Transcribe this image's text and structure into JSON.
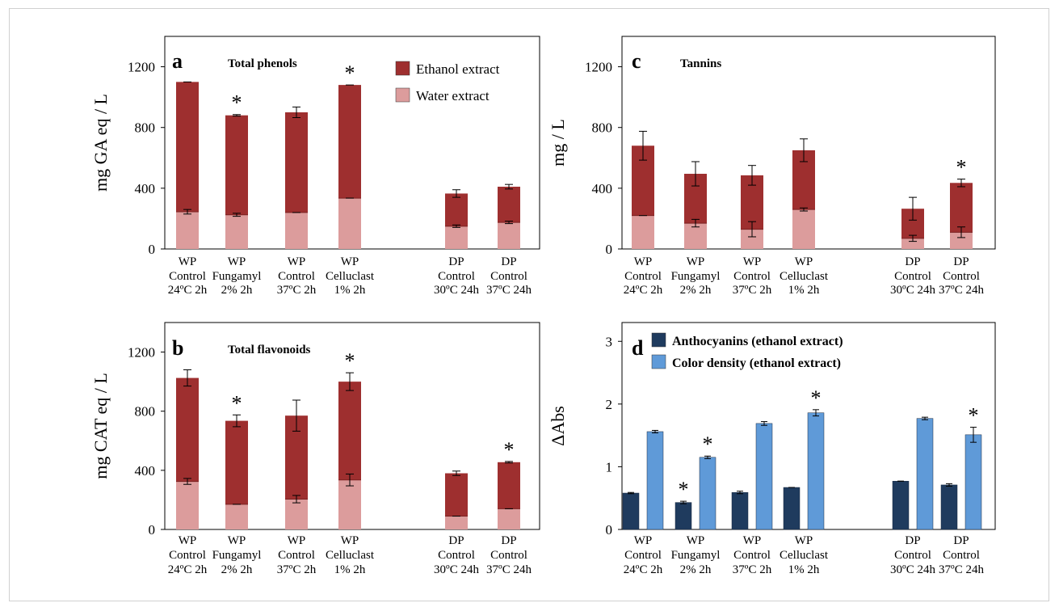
{
  "colors": {
    "ethanol": "#9e2f2f",
    "water": "#dc9c9c",
    "anthocyanins": "#1f3b5e",
    "color_density": "#5f9ad8"
  },
  "chart_data": [
    {
      "id": "a",
      "type": "bar",
      "stacked": true,
      "panel_letter": "a",
      "title": "Total phenols",
      "ylabel": "mg GA eq / L",
      "ylim": [
        0,
        1400
      ],
      "yticks": [
        "0",
        "400",
        "800",
        "1200"
      ],
      "categories": [
        [
          "WP",
          "Control",
          "24ºC  2h"
        ],
        [
          "WP",
          "Fungamyl",
          "2%  2h"
        ],
        [
          "WP",
          "Control",
          "37ºC  2h"
        ],
        [
          "WP",
          "Celluclast",
          "1%  2h"
        ],
        [
          "DP",
          "Control",
          "30ºC 24h"
        ],
        [
          "DP",
          "Control",
          "37ºC 24h"
        ]
      ],
      "legend": [
        "Ethanol extract",
        "Water extract"
      ],
      "series": [
        {
          "name": "Water extract",
          "values": [
            245,
            225,
            240,
            335,
            150,
            175
          ],
          "errors": [
            15,
            10,
            0,
            0,
            8,
            8
          ]
        },
        {
          "name": "Ethanol extract",
          "values": [
            855,
            655,
            660,
            745,
            215,
            235
          ],
          "errors": [
            0,
            5,
            35,
            0,
            25,
            15
          ]
        }
      ],
      "asterisks": [
        "",
        "*",
        "",
        "*",
        "",
        ""
      ]
    },
    {
      "id": "b",
      "type": "bar",
      "stacked": true,
      "panel_letter": "b",
      "title": "Total flavonoids",
      "ylabel": "mg CAT eq / L",
      "ylim": [
        0,
        1400
      ],
      "yticks": [
        "0",
        "400",
        "800",
        "1200"
      ],
      "categories": [
        [
          "WP",
          "Control",
          "24ºC  2h"
        ],
        [
          "WP",
          "Fungamyl",
          "2%  2h"
        ],
        [
          "WP",
          "Control",
          "37ºC  2h"
        ],
        [
          "WP",
          "Celluclast",
          "1%  2h"
        ],
        [
          "DP",
          "Control",
          "30ºC 24h"
        ],
        [
          "DP",
          "Control",
          "37ºC 24h"
        ]
      ],
      "series": [
        {
          "name": "Water extract",
          "values": [
            325,
            170,
            205,
            335,
            90,
            140
          ],
          "errors": [
            20,
            0,
            25,
            40,
            0,
            0
          ]
        },
        {
          "name": "Ethanol extract",
          "values": [
            700,
            565,
            565,
            665,
            290,
            315
          ],
          "errors": [
            55,
            40,
            105,
            60,
            15,
            5
          ]
        }
      ],
      "asterisks": [
        "",
        "*",
        "",
        "*",
        "",
        "*"
      ]
    },
    {
      "id": "c",
      "type": "bar",
      "stacked": true,
      "panel_letter": "c",
      "title": "Tannins",
      "ylabel": "mg / L",
      "ylim": [
        0,
        1400
      ],
      "yticks": [
        "0",
        "400",
        "800",
        "1200"
      ],
      "categories": [
        [
          "WP",
          "Control",
          "24ºC  2h"
        ],
        [
          "WP",
          "Fungamyl",
          "2%  2h"
        ],
        [
          "WP",
          "Control",
          "37ºC  2h"
        ],
        [
          "WP",
          "Celluclast",
          "1%  2h"
        ],
        [
          "DP",
          "Control",
          "30ºC 24h"
        ],
        [
          "DP",
          "Control",
          "37ºC 24h"
        ]
      ],
      "series": [
        {
          "name": "Water extract",
          "values": [
            220,
            170,
            130,
            260,
            70,
            110
          ],
          "errors": [
            0,
            25,
            50,
            10,
            20,
            35
          ]
        },
        {
          "name": "Ethanol extract",
          "values": [
            460,
            325,
            355,
            390,
            195,
            325
          ],
          "errors": [
            95,
            80,
            65,
            75,
            75,
            25
          ]
        }
      ],
      "asterisks": [
        "",
        "",
        "",
        "",
        "",
        "*"
      ]
    },
    {
      "id": "d",
      "type": "bar",
      "stacked": false,
      "panel_letter": "d",
      "title": "",
      "ylabel": "ΔAbs",
      "ylim": [
        0,
        3.3
      ],
      "yticks": [
        "0",
        "1",
        "2",
        "3"
      ],
      "categories": [
        [
          "WP",
          "Control",
          "24ºC  2h"
        ],
        [
          "WP",
          "Fungamyl",
          "2%  2h"
        ],
        [
          "WP",
          "Control",
          "37ºC  2h"
        ],
        [
          "WP",
          "Celluclast",
          "1%  2h"
        ],
        [
          "DP",
          "Control",
          "30ºC 24h"
        ],
        [
          "DP",
          "Control",
          "37ºC 24h"
        ]
      ],
      "legend": [
        "Anthocyanins (ethanol extract)",
        "Color density (ethanol extract)"
      ],
      "series": [
        {
          "name": "Anthocyanins (ethanol extract)",
          "values": [
            0.58,
            0.43,
            0.59,
            0.67,
            0.77,
            0.71
          ],
          "errors": [
            0.01,
            0.02,
            0.02,
            0,
            0,
            0.02
          ],
          "asterisks": [
            "",
            "*",
            "",
            "",
            "",
            ""
          ]
        },
        {
          "name": "Color density (ethanol extract)",
          "values": [
            1.56,
            1.15,
            1.69,
            1.86,
            1.77,
            1.51
          ],
          "errors": [
            0.02,
            0.02,
            0.03,
            0.05,
            0.02,
            0.12
          ],
          "asterisks": [
            "",
            "*",
            "",
            "*",
            "",
            "*"
          ]
        }
      ]
    }
  ]
}
